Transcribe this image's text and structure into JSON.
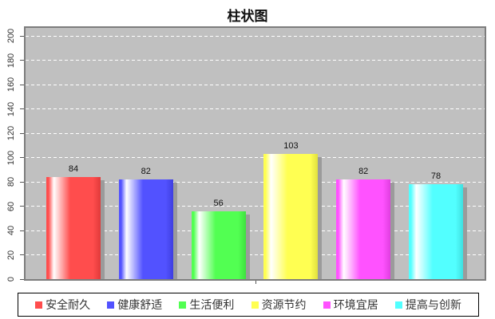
{
  "chart_data": {
    "type": "bar",
    "title": "柱状图",
    "categories": [
      "安全耐久",
      "健康舒适",
      "生活便利",
      "资源节约",
      "环境宜居",
      "提高与创新"
    ],
    "values": [
      84,
      82,
      56,
      103,
      82,
      78
    ],
    "colors": [
      "#ff4d4d",
      "#5252ff",
      "#52ff52",
      "#ffff52",
      "#ff52ff",
      "#52ffff"
    ],
    "colors_dark": [
      "#e03a3a",
      "#3e3ee0",
      "#3ee03e",
      "#e0e03e",
      "#e03ee0",
      "#3ee0e0"
    ],
    "highlight_color": "#ffffff",
    "ylim": [
      0,
      200
    ],
    "yticks": [
      0,
      20,
      40,
      60,
      80,
      100,
      120,
      140,
      160,
      180,
      200
    ],
    "grid": "horizontal-dashed",
    "gridline_color": "#ffffff",
    "plot_background": "#c0c0c0",
    "shadow_color": "#9b9b9b",
    "legend_position": "bottom",
    "legend_text_color": "#333333",
    "value_label_color": "#111111"
  }
}
